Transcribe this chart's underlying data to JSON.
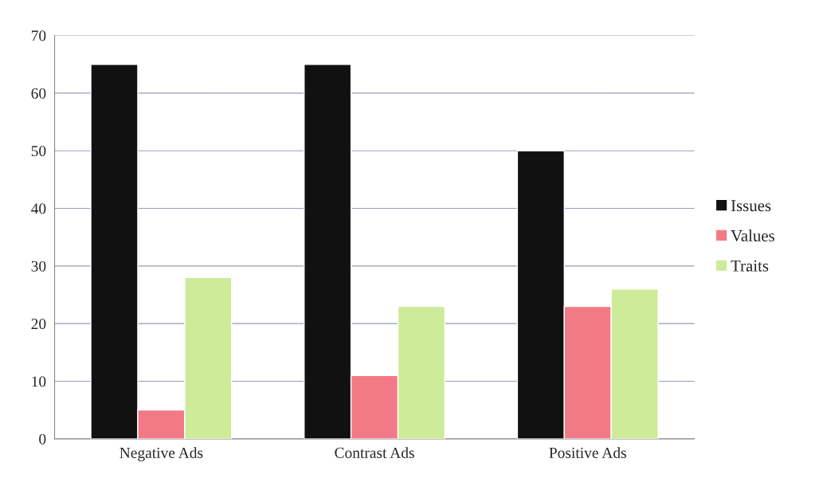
{
  "chart_data": {
    "type": "bar",
    "categories": [
      "Negative Ads",
      "Contrast Ads",
      "Positive Ads"
    ],
    "series": [
      {
        "name": "Issues",
        "color": "#111111",
        "values": [
          65,
          65,
          50
        ]
      },
      {
        "name": "Values",
        "color": "#f27a86",
        "values": [
          5,
          11,
          23
        ]
      },
      {
        "name": "Traits",
        "color": "#cdeb98",
        "values": [
          28,
          23,
          26
        ]
      }
    ],
    "ylim": [
      0,
      70
    ],
    "yticks": [
      0,
      10,
      20,
      30,
      40,
      50,
      60,
      70
    ],
    "grid": "y",
    "legend": "right"
  }
}
